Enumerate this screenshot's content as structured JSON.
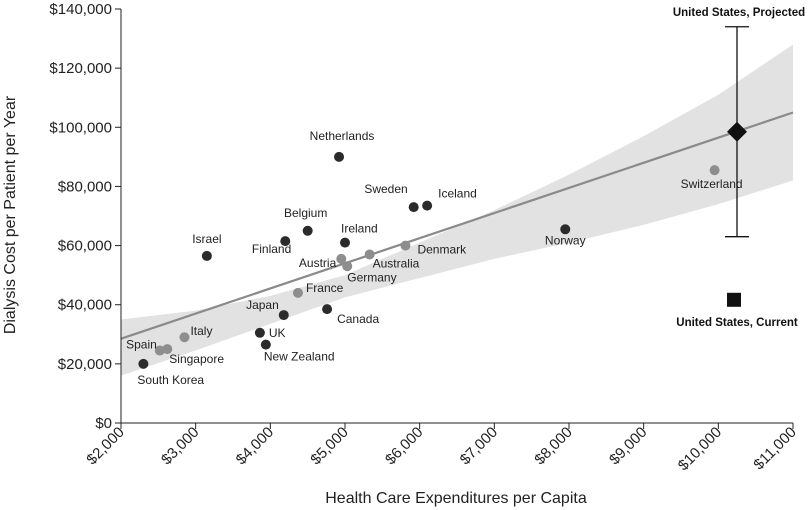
{
  "chart_data": {
    "type": "scatter",
    "xlabel": "Health Care Expenditures per Capita",
    "ylabel": "Dialysis Cost per Patient per Year",
    "xlim": [
      2000,
      11000
    ],
    "ylim": [
      0,
      140000
    ],
    "x_ticks": [
      "$2,000",
      "$3,000",
      "$4,000",
      "$5,000",
      "$6,000",
      "$7,000",
      "$8,000",
      "$9,000",
      "$10,000",
      "$11,000"
    ],
    "y_ticks": [
      "$0",
      "$20,000",
      "$40,000",
      "$60,000",
      "$80,000",
      "$100,000",
      "$120,000",
      "$140,000"
    ],
    "grid": false,
    "points": [
      {
        "label": "Netherlands",
        "x": 4920,
        "y": 90000,
        "color": "dark"
      },
      {
        "label": "Iceland",
        "x": 6100,
        "y": 73500,
        "color": "dark"
      },
      {
        "label": "Sweden",
        "x": 5920,
        "y": 73000,
        "color": "dark"
      },
      {
        "label": "Switzerland",
        "x": 9950,
        "y": 85500,
        "color": "gray"
      },
      {
        "label": "Belgium",
        "x": 4500,
        "y": 65000,
        "color": "dark"
      },
      {
        "label": "Ireland",
        "x": 5000,
        "y": 61000,
        "color": "dark"
      },
      {
        "label": "Finland",
        "x": 4200,
        "y": 61500,
        "color": "dark"
      },
      {
        "label": "Israel",
        "x": 3150,
        "y": 56500,
        "color": "dark"
      },
      {
        "label": "Norway",
        "x": 7950,
        "y": 65500,
        "color": "dark"
      },
      {
        "label": "Denmark",
        "x": 5810,
        "y": 60000,
        "color": "gray"
      },
      {
        "label": "Australia",
        "x": 5330,
        "y": 57000,
        "color": "gray"
      },
      {
        "label": "Austria",
        "x": 4950,
        "y": 55500,
        "color": "gray"
      },
      {
        "label": "Germany",
        "x": 5030,
        "y": 53000,
        "color": "gray"
      },
      {
        "label": "France",
        "x": 4370,
        "y": 44000,
        "color": "gray"
      },
      {
        "label": "Japan",
        "x": 4180,
        "y": 36500,
        "color": "dark"
      },
      {
        "label": "Canada",
        "x": 4760,
        "y": 38500,
        "color": "dark"
      },
      {
        "label": "UK",
        "x": 3860,
        "y": 30500,
        "color": "dark"
      },
      {
        "label": "New Zealand",
        "x": 3940,
        "y": 26500,
        "color": "dark"
      },
      {
        "label": "Italy",
        "x": 2850,
        "y": 29000,
        "color": "gray"
      },
      {
        "label": "Spain",
        "x": 2520,
        "y": 24500,
        "color": "gray"
      },
      {
        "label": "Singapore",
        "x": 2620,
        "y": 25000,
        "color": "gray"
      },
      {
        "label": "South Korea",
        "x": 2300,
        "y": 20000,
        "color": "dark"
      }
    ],
    "regression": {
      "x": [
        2000,
        11000
      ],
      "y": [
        28500,
        105000
      ]
    },
    "confidence_band": {
      "x": [
        2000,
        3000,
        4000,
        5000,
        6000,
        7000,
        8000,
        9000,
        10000,
        11000
      ],
      "upper": [
        35000,
        38000,
        43000,
        50000,
        61000,
        72000,
        84000,
        97000,
        111000,
        128000
      ],
      "lower": [
        16000,
        24500,
        33500,
        42500,
        49000,
        55500,
        61000,
        67000,
        74000,
        82000
      ]
    },
    "us_projected": {
      "label": "United States, Projected",
      "x": 10250,
      "y": 98500,
      "err_low": 63000,
      "err_high": 134000
    },
    "us_current": {
      "label": "United States, Current",
      "x": 10250,
      "y": 42000
    }
  },
  "colors": {
    "dark": "#2b2b2b",
    "gray": "#8e8e8e",
    "band": "#e2e2e2",
    "line": "#8a8a8a"
  }
}
